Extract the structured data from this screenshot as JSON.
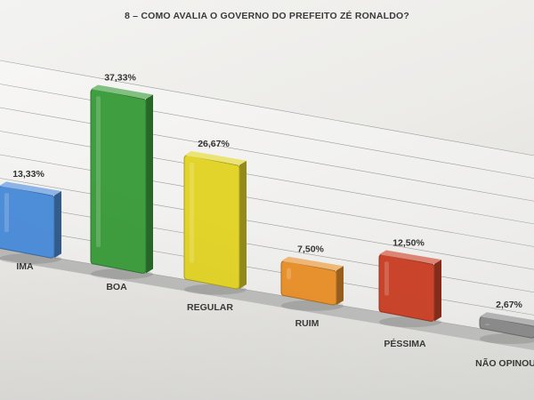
{
  "chart_data": {
    "type": "bar",
    "title": "8 – COMO AVALIA O GOVERNO DO PREFEITO ZÉ RONALDO?",
    "categories": [
      "ÓTIMA",
      "BOA",
      "REGULAR",
      "RUIM",
      "PÉSSIMA",
      "NÃO OPINOU"
    ],
    "category_labels_visible": [
      "IMA",
      "BOA",
      "REGULAR",
      "RUIM",
      "PÉSSIMA",
      "NÃO OPINOU"
    ],
    "values": [
      13.33,
      37.33,
      26.67,
      7.5,
      12.5,
      2.67
    ],
    "value_labels": [
      "13,33%",
      "37,33%",
      "26,67%",
      "7,50%",
      "12,50%",
      "2,67%"
    ],
    "colors": [
      "#4f8fdb",
      "#3f9e3f",
      "#e2d42a",
      "#e8922e",
      "#c9442a",
      "#8a8a8a"
    ],
    "xlabel": "",
    "ylabel": "",
    "ylim": [
      0,
      40
    ],
    "grid": true,
    "legend": "none"
  }
}
